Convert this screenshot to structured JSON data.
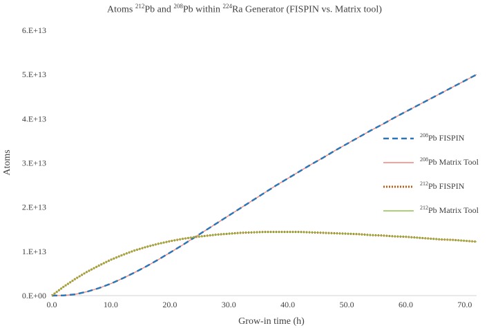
{
  "chart_data": {
    "type": "line",
    "title": {
      "prefix": "Atoms ",
      "iso1": "212",
      "mid1": "Pb and ",
      "iso2": "208",
      "mid2": "Pb within ",
      "iso3": "224",
      "suffix": "Ra Generator (FISPIN vs. Matrix tool)"
    },
    "xlabel": "Grow-in time (h)",
    "ylabel": "Atoms",
    "xlim": [
      0,
      72
    ],
    "ylim": [
      0,
      60000000000000.0
    ],
    "x_ticks": [
      0,
      10,
      20,
      30,
      40,
      50,
      60,
      70
    ],
    "x_tick_labels": [
      "0.0",
      "10.0",
      "20.0",
      "30.0",
      "40.0",
      "50.0",
      "60.0",
      "70.0"
    ],
    "y_ticks": [
      0,
      10000000000000.0,
      20000000000000.0,
      30000000000000.0,
      40000000000000.0,
      50000000000000.0,
      60000000000000.0
    ],
    "y_tick_labels": [
      "0.E+00",
      "1.E+13",
      "2.E+13",
      "3.E+13",
      "4.E+13",
      "5.E+13",
      "6.E+13"
    ],
    "grid": false,
    "legend_position": "right",
    "x": [
      0,
      2,
      4,
      6,
      8,
      10,
      12,
      14,
      16,
      18,
      20,
      22,
      24,
      26,
      28,
      30,
      32,
      34,
      36,
      38,
      40,
      42,
      44,
      46,
      48,
      50,
      52,
      54,
      56,
      58,
      60,
      62,
      64,
      66,
      68,
      70,
      72
    ],
    "series": [
      {
        "iso": "208",
        "name": "Pb FISPIN",
        "color": "#2e75b6",
        "style": "dashed",
        "values": [
          0,
          40000000000.0,
          300000000000.0,
          900000000000.0,
          1700000000000.0,
          2700000000000.0,
          3900000000000.0,
          5200000000000.0,
          6600000000000.0,
          8100000000000.0,
          9700000000000.0,
          11300000000000.0,
          13000000000000.0,
          14700000000000.0,
          16400000000000.0,
          18100000000000.0,
          19800000000000.0,
          21500000000000.0,
          23200000000000.0,
          24900000000000.0,
          26500000000000.0,
          28100000000000.0,
          29700000000000.0,
          31200000000000.0,
          32800000000000.0,
          34300000000000.0,
          35800000000000.0,
          37300000000000.0,
          38700000000000.0,
          40200000000000.0,
          41600000000000.0,
          43000000000000.0,
          44400000000000.0,
          45800000000000.0,
          47200000000000.0,
          48600000000000.0,
          50000000000000.0
        ]
      },
      {
        "iso": "208",
        "name": "Pb Matrix  Tool",
        "color": "#f4827a",
        "style": "solid",
        "values": [
          0,
          40000000000.0,
          300000000000.0,
          900000000000.0,
          1700000000000.0,
          2700000000000.0,
          3900000000000.0,
          5200000000000.0,
          6600000000000.0,
          8100000000000.0,
          9700000000000.0,
          11300000000000.0,
          13000000000000.0,
          14700000000000.0,
          16400000000000.0,
          18100000000000.0,
          19800000000000.0,
          21500000000000.0,
          23200000000000.0,
          24900000000000.0,
          26500000000000.0,
          28100000000000.0,
          29700000000000.0,
          31200000000000.0,
          32800000000000.0,
          34300000000000.0,
          35800000000000.0,
          37300000000000.0,
          38700000000000.0,
          40200000000000.0,
          41600000000000.0,
          43000000000000.0,
          44400000000000.0,
          45800000000000.0,
          47200000000000.0,
          48600000000000.0,
          50000000000000.0
        ]
      },
      {
        "iso": "212",
        "name": "Pb FISPIN",
        "color": "#c55a11",
        "style": "dotted",
        "values": [
          0,
          2000000000000.0,
          3800000000000.0,
          5400000000000.0,
          6800000000000.0,
          8100000000000.0,
          9200000000000.0,
          10200000000000.0,
          11000000000000.0,
          11700000000000.0,
          12300000000000.0,
          12800000000000.0,
          13200000000000.0,
          13500000000000.0,
          13800000000000.0,
          14000000000000.0,
          14200000000000.0,
          14300000000000.0,
          14400000000000.0,
          14400000000000.0,
          14400000000000.0,
          14400000000000.0,
          14300000000000.0,
          14200000000000.0,
          14100000000000.0,
          14000000000000.0,
          13900000000000.0,
          13700000000000.0,
          13600000000000.0,
          13400000000000.0,
          13300000000000.0,
          13100000000000.0,
          12900000000000.0,
          12700000000000.0,
          12600000000000.0,
          12400000000000.0,
          12200000000000.0
        ]
      },
      {
        "iso": "212",
        "name": "Pb Matrix Tool",
        "color": "#8fc14a",
        "style": "solid",
        "values": [
          0,
          2000000000000.0,
          3800000000000.0,
          5400000000000.0,
          6800000000000.0,
          8100000000000.0,
          9200000000000.0,
          10200000000000.0,
          11000000000000.0,
          11700000000000.0,
          12300000000000.0,
          12800000000000.0,
          13200000000000.0,
          13500000000000.0,
          13800000000000.0,
          14000000000000.0,
          14200000000000.0,
          14300000000000.0,
          14400000000000.0,
          14400000000000.0,
          14400000000000.0,
          14400000000000.0,
          14300000000000.0,
          14200000000000.0,
          14100000000000.0,
          14000000000000.0,
          13900000000000.0,
          13700000000000.0,
          13600000000000.0,
          13400000000000.0,
          13300000000000.0,
          13100000000000.0,
          12900000000000.0,
          12700000000000.0,
          12600000000000.0,
          12400000000000.0,
          12200000000000.0
        ]
      }
    ]
  }
}
